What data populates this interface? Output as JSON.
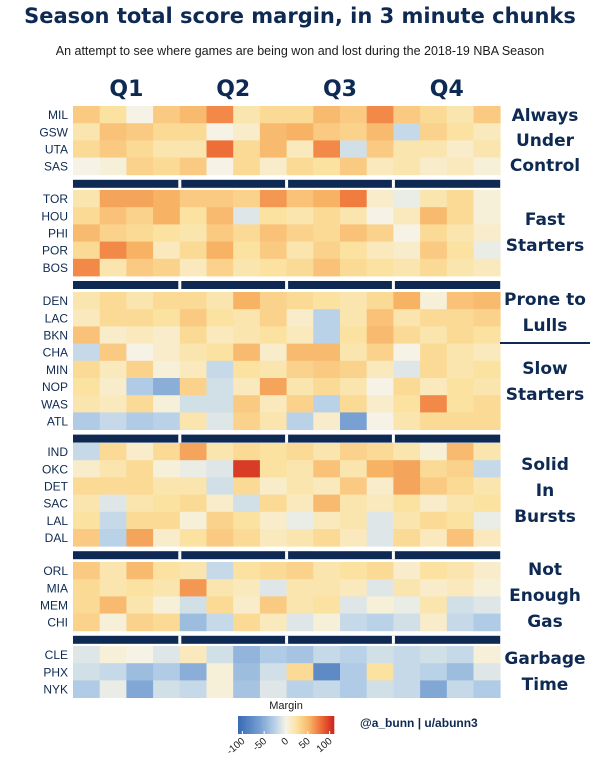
{
  "chart_data": {
    "type": "heatmap",
    "title": "Season total score margin, in 3 minute chunks",
    "subtitle": "An attempt to see where games are being won and lost during the 2018-19 NBA Season",
    "quarters": [
      "Q1",
      "Q2",
      "Q3",
      "Q4"
    ],
    "chunks_per_quarter": 4,
    "groups": [
      {
        "label": "Always Under Control",
        "teams": [
          "MIL",
          "GSW",
          "UTA",
          "SAS"
        ],
        "values": [
          [
            40,
            25,
            0,
            40,
            50,
            70,
            20,
            30,
            30,
            50,
            40,
            70,
            40,
            30,
            20,
            40
          ],
          [
            20,
            45,
            40,
            30,
            30,
            0,
            10,
            50,
            55,
            40,
            35,
            50,
            -20,
            35,
            25,
            15
          ],
          [
            30,
            40,
            30,
            20,
            20,
            80,
            30,
            50,
            15,
            70,
            -15,
            40,
            20,
            20,
            10,
            20
          ],
          [
            0,
            5,
            35,
            30,
            40,
            0,
            30,
            10,
            30,
            25,
            40,
            15,
            20,
            10,
            15,
            5
          ]
        ]
      },
      {
        "label": "Fast Starters",
        "teams": [
          "TOR",
          "HOU",
          "PHI",
          "POR",
          "BOS"
        ],
        "values": [
          [
            20,
            60,
            60,
            55,
            40,
            40,
            35,
            65,
            45,
            55,
            75,
            10,
            -5,
            20,
            30,
            5
          ],
          [
            30,
            45,
            35,
            55,
            25,
            50,
            -10,
            25,
            20,
            30,
            20,
            0,
            15,
            50,
            30,
            5
          ],
          [
            50,
            35,
            30,
            25,
            20,
            40,
            30,
            45,
            35,
            30,
            45,
            35,
            0,
            30,
            20,
            10
          ],
          [
            30,
            70,
            55,
            15,
            30,
            55,
            25,
            40,
            20,
            35,
            25,
            15,
            10,
            40,
            25,
            -5
          ],
          [
            70,
            20,
            40,
            35,
            15,
            35,
            20,
            25,
            30,
            45,
            30,
            25,
            20,
            30,
            20,
            15
          ]
        ]
      },
      {
        "label": "Prone to Lulls",
        "teams": [
          "DEN",
          "LAC",
          "BKN"
        ],
        "values": [
          [
            20,
            30,
            20,
            30,
            30,
            20,
            55,
            35,
            30,
            25,
            20,
            30,
            55,
            5,
            45,
            50
          ],
          [
            15,
            30,
            30,
            25,
            40,
            25,
            20,
            35,
            10,
            -25,
            20,
            45,
            20,
            30,
            30,
            35
          ],
          [
            45,
            10,
            15,
            10,
            30,
            15,
            20,
            25,
            15,
            -25,
            25,
            50,
            30,
            20,
            30,
            25
          ]
        ]
      },
      {
        "label": "Slow Starters",
        "teams": [
          "CHA",
          "MIN",
          "NOP",
          "WAS",
          "ATL"
        ],
        "values": [
          [
            -20,
            40,
            0,
            10,
            20,
            25,
            50,
            10,
            50,
            50,
            20,
            35,
            0,
            30,
            20,
            15
          ],
          [
            30,
            15,
            35,
            5,
            15,
            -20,
            25,
            20,
            35,
            40,
            35,
            15,
            -10,
            30,
            20,
            25
          ],
          [
            25,
            10,
            -30,
            -50,
            35,
            -15,
            15,
            60,
            20,
            30,
            20,
            0,
            30,
            15,
            25,
            20
          ],
          [
            20,
            15,
            30,
            5,
            -15,
            -15,
            40,
            15,
            35,
            -25,
            30,
            10,
            25,
            70,
            25,
            30
          ],
          [
            -30,
            -20,
            -30,
            -25,
            20,
            -10,
            35,
            20,
            -25,
            10,
            -60,
            0,
            20,
            30,
            30,
            30
          ]
        ]
      },
      {
        "label": "Solid In Bursts",
        "teams": [
          "IND",
          "OKC",
          "DET",
          "SAC",
          "LAL",
          "DAL"
        ],
        "values": [
          [
            -20,
            30,
            10,
            30,
            60,
            20,
            30,
            25,
            30,
            20,
            35,
            30,
            20,
            5,
            50,
            20
          ],
          [
            10,
            20,
            30,
            5,
            -5,
            -10,
            100,
            25,
            20,
            45,
            20,
            55,
            60,
            30,
            35,
            -20
          ],
          [
            30,
            30,
            30,
            20,
            20,
            -15,
            30,
            10,
            20,
            15,
            40,
            10,
            60,
            40,
            30,
            20
          ],
          [
            20,
            -10,
            20,
            25,
            30,
            10,
            -15,
            30,
            15,
            50,
            20,
            15,
            25,
            10,
            20,
            25
          ],
          [
            25,
            -20,
            30,
            30,
            5,
            35,
            25,
            10,
            -5,
            15,
            20,
            -10,
            20,
            30,
            25,
            -5
          ],
          [
            40,
            -25,
            60,
            10,
            25,
            40,
            30,
            15,
            20,
            30,
            15,
            -10,
            30,
            15,
            45,
            15
          ]
        ]
      },
      {
        "label": "Not Enough Gas",
        "teams": [
          "ORL",
          "MIA",
          "MEM",
          "CHI"
        ],
        "values": [
          [
            40,
            20,
            50,
            25,
            20,
            -20,
            25,
            30,
            35,
            20,
            25,
            30,
            10,
            25,
            20,
            10
          ],
          [
            30,
            20,
            25,
            20,
            65,
            20,
            15,
            -10,
            20,
            20,
            15,
            -10,
            20,
            10,
            15,
            5
          ],
          [
            30,
            50,
            20,
            5,
            -15,
            30,
            10,
            40,
            20,
            25,
            -10,
            5,
            -5,
            20,
            -15,
            -10
          ],
          [
            35,
            5,
            35,
            30,
            -40,
            -20,
            30,
            15,
            -10,
            5,
            -20,
            -25,
            -15,
            10,
            -20,
            -30
          ]
        ]
      },
      {
        "label": "Garbage Time",
        "teams": [
          "CLE",
          "PHX",
          "NYK"
        ],
        "values": [
          [
            -10,
            5,
            0,
            -10,
            15,
            -15,
            -45,
            -30,
            -35,
            -20,
            -25,
            -15,
            -20,
            -15,
            -20,
            5
          ],
          [
            -15,
            -20,
            -40,
            -30,
            -50,
            5,
            -40,
            -15,
            30,
            -80,
            -30,
            25,
            -20,
            -25,
            -40,
            -10
          ],
          [
            -30,
            -5,
            -55,
            -15,
            -20,
            5,
            -35,
            -10,
            -25,
            -20,
            -30,
            -15,
            -20,
            -55,
            -20,
            -30
          ]
        ]
      }
    ],
    "legend": {
      "title": "Margin",
      "ticks": [
        -100,
        -50,
        0,
        50,
        100
      ],
      "range": [
        -110,
        110
      ]
    },
    "credit": "@a_bunn | u/abunn3"
  }
}
